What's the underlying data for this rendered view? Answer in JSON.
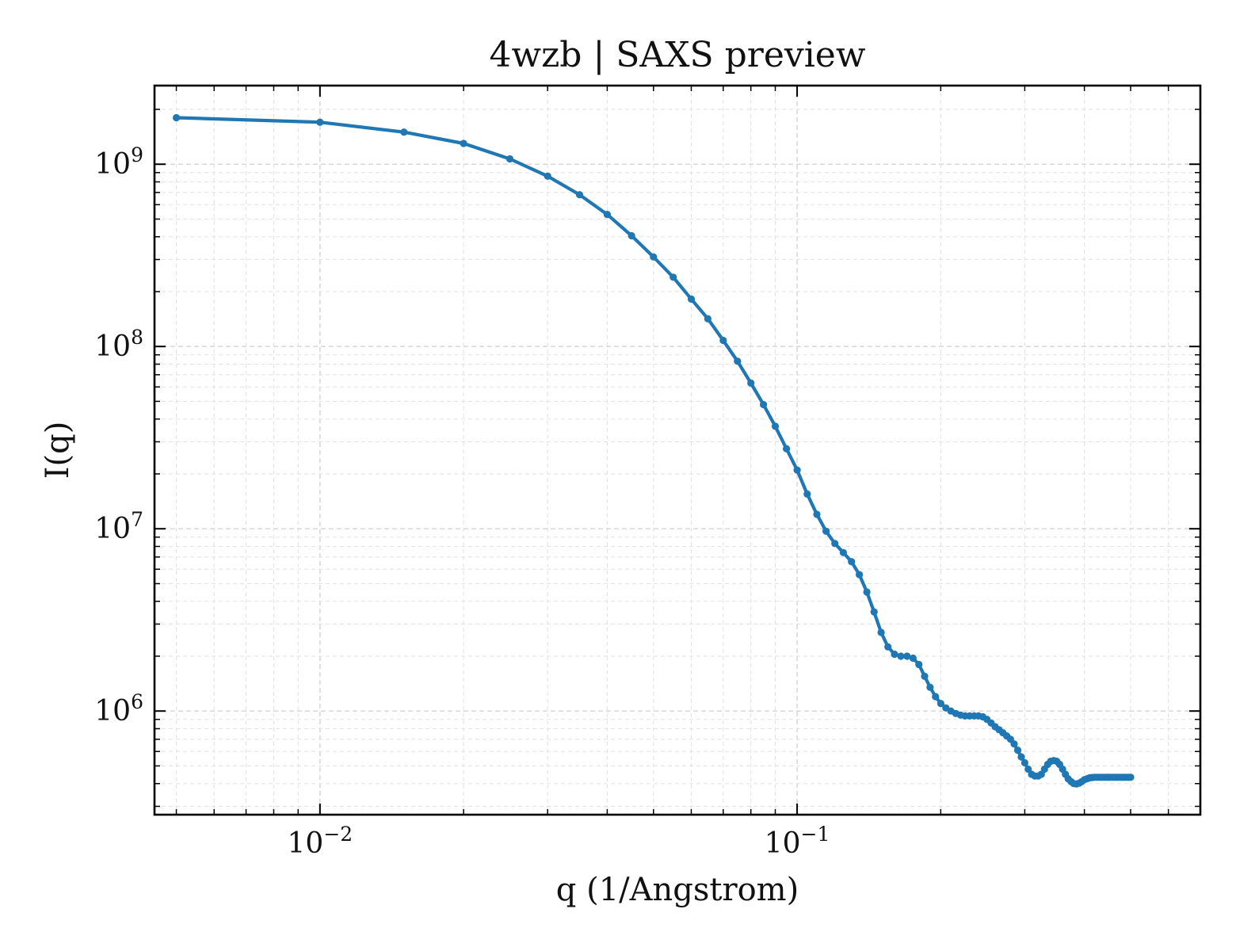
{
  "chart_data": {
    "type": "line",
    "title": "4wzb | SAXS preview",
    "xlabel": "q (1/Angstrom)",
    "ylabel": "I(q)",
    "xscale": "log",
    "yscale": "log",
    "xlim": [
      0.0045,
      0.7
    ],
    "ylim": [
      270000,
      2700000000
    ],
    "grid": true,
    "x_tick_labels": [
      {
        "value": 0.01,
        "base": "10",
        "exp": "−2"
      },
      {
        "value": 0.1,
        "base": "10",
        "exp": "−1"
      }
    ],
    "y_tick_labels": [
      {
        "value": 1000000,
        "base": "10",
        "exp": "6"
      },
      {
        "value": 10000000,
        "base": "10",
        "exp": "7"
      },
      {
        "value": 100000000,
        "base": "10",
        "exp": "8"
      },
      {
        "value": 1000000000,
        "base": "10",
        "exp": "9"
      }
    ],
    "colors": {
      "series": "#1f77b4",
      "axes": "#000000"
    },
    "series": [
      {
        "x": [
          0.005,
          0.01,
          0.015,
          0.02,
          0.025,
          0.03,
          0.035,
          0.04,
          0.045,
          0.05,
          0.055,
          0.06,
          0.065,
          0.07,
          0.075,
          0.08,
          0.085,
          0.09,
          0.095,
          0.1,
          0.105,
          0.11,
          0.115,
          0.12,
          0.125,
          0.13,
          0.135,
          0.14,
          0.145,
          0.15,
          0.155,
          0.16,
          0.165,
          0.17,
          0.175,
          0.18,
          0.185,
          0.19,
          0.195,
          0.2,
          0.205,
          0.21,
          0.215,
          0.22,
          0.225,
          0.23,
          0.235,
          0.24,
          0.245,
          0.25,
          0.255,
          0.26,
          0.265,
          0.27,
          0.275,
          0.28,
          0.285,
          0.29,
          0.295,
          0.3,
          0.305,
          0.31,
          0.315,
          0.32,
          0.325,
          0.33,
          0.335,
          0.34,
          0.345,
          0.35,
          0.355,
          0.36,
          0.365,
          0.37,
          0.375,
          0.38,
          0.385,
          0.39,
          0.395,
          0.4,
          0.405,
          0.41,
          0.415,
          0.42,
          0.425,
          0.43,
          0.435,
          0.44,
          0.445,
          0.45,
          0.455,
          0.46,
          0.465,
          0.47,
          0.475,
          0.48,
          0.485,
          0.49,
          0.495,
          0.5
        ],
        "y": [
          1800000000,
          1700000000,
          1500000000,
          1300000000,
          1070000000,
          860000000,
          680000000,
          530000000,
          405000000,
          310000000,
          240000000,
          182000000,
          142000000,
          108000000,
          83000000,
          63000000,
          48000000,
          36500000,
          27500000,
          21000000,
          15500000,
          12000000,
          9700000,
          8300000,
          7400000,
          6600000,
          5600000,
          4500000,
          3500000,
          2700000,
          2250000,
          2050000,
          2000000,
          2000000,
          1950000,
          1800000,
          1550000,
          1350000,
          1200000,
          1100000,
          1040000,
          1000000,
          970000,
          950000,
          940000,
          940000,
          940000,
          940000,
          930000,
          900000,
          860000,
          820000,
          790000,
          760000,
          730000,
          700000,
          660000,
          610000,
          560000,
          520000,
          480000,
          450000,
          440000,
          440000,
          450000,
          480000,
          510000,
          530000,
          535000,
          530000,
          510000,
          480000,
          450000,
          425000,
          410000,
          400000,
          398000,
          402000,
          410000,
          420000,
          425000,
          430000,
          432000,
          433000,
          433000,
          433000,
          433000,
          433000,
          433000,
          433000,
          433000,
          433000,
          433000,
          433000,
          433000,
          433000,
          433000,
          433000,
          433000,
          433000
        ]
      }
    ]
  }
}
